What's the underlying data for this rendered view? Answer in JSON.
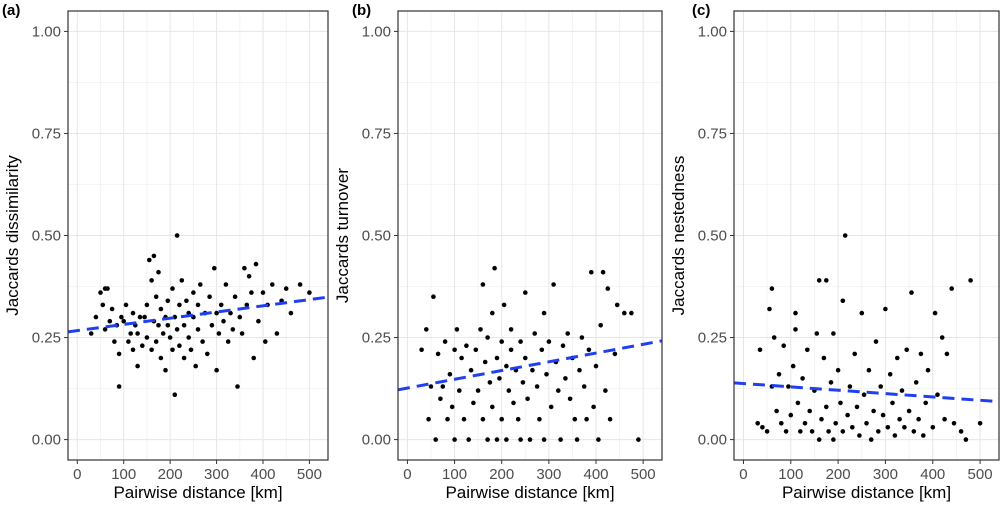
{
  "chart_data": [
    {
      "panel": "(a)",
      "type": "scatter",
      "xlabel": "Pairwise distance [km]",
      "ylabel": "Jaccards dissimilarity",
      "xlim": [
        -20,
        540
      ],
      "ylim": [
        -0.05,
        1.05
      ],
      "xticks": [
        "0",
        "100",
        "200",
        "300",
        "400",
        "500"
      ],
      "yticks": [
        "0.00",
        "0.25",
        "0.50",
        "0.75",
        "1.00"
      ],
      "trend": {
        "x": [
          -20,
          540
        ],
        "y": [
          0.264,
          0.349
        ]
      },
      "points": [
        [
          30,
          0.26
        ],
        [
          40,
          0.3
        ],
        [
          50,
          0.36
        ],
        [
          55,
          0.33
        ],
        [
          60,
          0.37
        ],
        [
          60,
          0.27
        ],
        [
          65,
          0.37
        ],
        [
          70,
          0.29
        ],
        [
          75,
          0.32
        ],
        [
          80,
          0.24
        ],
        [
          85,
          0.28
        ],
        [
          90,
          0.13
        ],
        [
          90,
          0.21
        ],
        [
          95,
          0.3
        ],
        [
          100,
          0.29
        ],
        [
          105,
          0.33
        ],
        [
          110,
          0.24
        ],
        [
          115,
          0.26
        ],
        [
          120,
          0.22
        ],
        [
          120,
          0.31
        ],
        [
          125,
          0.28
        ],
        [
          130,
          0.18
        ],
        [
          130,
          0.26
        ],
        [
          135,
          0.3
        ],
        [
          140,
          0.23
        ],
        [
          145,
          0.3
        ],
        [
          150,
          0.33
        ],
        [
          150,
          0.25
        ],
        [
          155,
          0.44
        ],
        [
          160,
          0.39
        ],
        [
          160,
          0.22
        ],
        [
          165,
          0.45
        ],
        [
          165,
          0.29
        ],
        [
          170,
          0.35
        ],
        [
          170,
          0.24
        ],
        [
          175,
          0.41
        ],
        [
          175,
          0.28
        ],
        [
          180,
          0.32
        ],
        [
          180,
          0.2
        ],
        [
          185,
          0.26
        ],
        [
          190,
          0.3
        ],
        [
          190,
          0.17
        ],
        [
          195,
          0.34
        ],
        [
          195,
          0.28
        ],
        [
          200,
          0.25
        ],
        [
          205,
          0.37
        ],
        [
          205,
          0.22
        ],
        [
          210,
          0.11
        ],
        [
          210,
          0.3
        ],
        [
          215,
          0.5
        ],
        [
          215,
          0.27
        ],
        [
          220,
          0.33
        ],
        [
          220,
          0.23
        ],
        [
          225,
          0.39
        ],
        [
          230,
          0.28
        ],
        [
          230,
          0.2
        ],
        [
          235,
          0.34
        ],
        [
          240,
          0.31
        ],
        [
          240,
          0.25
        ],
        [
          245,
          0.22
        ],
        [
          250,
          0.36
        ],
        [
          250,
          0.3
        ],
        [
          255,
          0.18
        ],
        [
          260,
          0.33
        ],
        [
          260,
          0.27
        ],
        [
          265,
          0.38
        ],
        [
          270,
          0.24
        ],
        [
          275,
          0.31
        ],
        [
          280,
          0.21
        ],
        [
          285,
          0.35
        ],
        [
          290,
          0.28
        ],
        [
          295,
          0.42
        ],
        [
          300,
          0.31
        ],
        [
          300,
          0.17
        ],
        [
          305,
          0.26
        ],
        [
          310,
          0.33
        ],
        [
          315,
          0.29
        ],
        [
          320,
          0.38
        ],
        [
          325,
          0.24
        ],
        [
          330,
          0.31
        ],
        [
          335,
          0.27
        ],
        [
          340,
          0.35
        ],
        [
          345,
          0.13
        ],
        [
          350,
          0.3
        ],
        [
          355,
          0.26
        ],
        [
          360,
          0.42
        ],
        [
          365,
          0.33
        ],
        [
          370,
          0.4
        ],
        [
          375,
          0.36
        ],
        [
          380,
          0.2
        ],
        [
          385,
          0.43
        ],
        [
          390,
          0.29
        ],
        [
          400,
          0.36
        ],
        [
          405,
          0.24
        ],
        [
          410,
          0.33
        ],
        [
          420,
          0.38
        ],
        [
          430,
          0.26
        ],
        [
          440,
          0.34
        ],
        [
          450,
          0.37
        ],
        [
          460,
          0.31
        ],
        [
          480,
          0.38
        ],
        [
          500,
          0.36
        ]
      ]
    },
    {
      "panel": "(b)",
      "type": "scatter",
      "xlabel": "Pairwise distance [km]",
      "ylabel": "Jaccards turnover",
      "xlim": [
        -20,
        540
      ],
      "ylim": [
        -0.05,
        1.05
      ],
      "xticks": [
        "0",
        "100",
        "200",
        "300",
        "400",
        "500"
      ],
      "yticks": [
        "0.00",
        "0.25",
        "0.50",
        "0.75",
        "1.00"
      ],
      "trend": {
        "x": [
          -20,
          540
        ],
        "y": [
          0.122,
          0.242
        ]
      },
      "points": [
        [
          30,
          0.22
        ],
        [
          40,
          0.27
        ],
        [
          45,
          0.05
        ],
        [
          50,
          0.13
        ],
        [
          55,
          0.35
        ],
        [
          60,
          0.0
        ],
        [
          65,
          0.21
        ],
        [
          70,
          0.1
        ],
        [
          75,
          0.13
        ],
        [
          80,
          0.24
        ],
        [
          85,
          0.05
        ],
        [
          90,
          0.16
        ],
        [
          95,
          0.08
        ],
        [
          100,
          0.22
        ],
        [
          100,
          0.0
        ],
        [
          105,
          0.27
        ],
        [
          110,
          0.12
        ],
        [
          115,
          0.2
        ],
        [
          120,
          0.05
        ],
        [
          125,
          0.23
        ],
        [
          130,
          0.0
        ],
        [
          135,
          0.17
        ],
        [
          140,
          0.09
        ],
        [
          145,
          0.22
        ],
        [
          150,
          0.12
        ],
        [
          155,
          0.27
        ],
        [
          160,
          0.05
        ],
        [
          160,
          0.38
        ],
        [
          165,
          0.19
        ],
        [
          170,
          0.0
        ],
        [
          170,
          0.25
        ],
        [
          175,
          0.14
        ],
        [
          180,
          0.31
        ],
        [
          180,
          0.08
        ],
        [
          185,
          0.42
        ],
        [
          190,
          0.0
        ],
        [
          190,
          0.2
        ],
        [
          195,
          0.15
        ],
        [
          200,
          0.24
        ],
        [
          200,
          0.05
        ],
        [
          205,
          0.33
        ],
        [
          210,
          0.18
        ],
        [
          210,
          0.0
        ],
        [
          215,
          0.12
        ],
        [
          220,
          0.22
        ],
        [
          220,
          0.27
        ],
        [
          225,
          0.09
        ],
        [
          230,
          0.17
        ],
        [
          235,
          0.05
        ],
        [
          240,
          0.24
        ],
        [
          240,
          0.0
        ],
        [
          245,
          0.14
        ],
        [
          250,
          0.36
        ],
        [
          250,
          0.2
        ],
        [
          255,
          0.1
        ],
        [
          260,
          0.0
        ],
        [
          265,
          0.17
        ],
        [
          270,
          0.26
        ],
        [
          275,
          0.13
        ],
        [
          280,
          0.05
        ],
        [
          285,
          0.22
        ],
        [
          290,
          0.31
        ],
        [
          290,
          0.0
        ],
        [
          295,
          0.16
        ],
        [
          300,
          0.24
        ],
        [
          305,
          0.08
        ],
        [
          310,
          0.38
        ],
        [
          315,
          0.19
        ],
        [
          320,
          0.12
        ],
        [
          325,
          0.0
        ],
        [
          330,
          0.23
        ],
        [
          335,
          0.15
        ],
        [
          340,
          0.26
        ],
        [
          345,
          0.1
        ],
        [
          350,
          0.2
        ],
        [
          355,
          0.05
        ],
        [
          360,
          0.0
        ],
        [
          365,
          0.17
        ],
        [
          370,
          0.25
        ],
        [
          375,
          0.13
        ],
        [
          380,
          0.05
        ],
        [
          385,
          0.22
        ],
        [
          390,
          0.41
        ],
        [
          395,
          0.08
        ],
        [
          400,
          0.18
        ],
        [
          405,
          0.0
        ],
        [
          410,
          0.28
        ],
        [
          415,
          0.41
        ],
        [
          420,
          0.12
        ],
        [
          425,
          0.37
        ],
        [
          430,
          0.05
        ],
        [
          440,
          0.21
        ],
        [
          445,
          0.33
        ],
        [
          460,
          0.31
        ],
        [
          475,
          0.31
        ],
        [
          490,
          0.0
        ]
      ]
    },
    {
      "panel": "(c)",
      "type": "scatter",
      "xlabel": "Pairwise distance [km]",
      "ylabel": "Jaccards nestedness",
      "xlim": [
        -20,
        540
      ],
      "ylim": [
        -0.05,
        1.05
      ],
      "xticks": [
        "0",
        "100",
        "200",
        "300",
        "400",
        "500"
      ],
      "yticks": [
        "0.00",
        "0.25",
        "0.50",
        "0.75",
        "1.00"
      ],
      "trend": {
        "x": [
          -20,
          540
        ],
        "y": [
          0.139,
          0.093
        ]
      },
      "points": [
        [
          30,
          0.04
        ],
        [
          35,
          0.22
        ],
        [
          40,
          0.03
        ],
        [
          50,
          0.02
        ],
        [
          55,
          0.32
        ],
        [
          60,
          0.37
        ],
        [
          60,
          0.13
        ],
        [
          65,
          0.25
        ],
        [
          70,
          0.07
        ],
        [
          75,
          0.16
        ],
        [
          80,
          0.04
        ],
        [
          85,
          0.23
        ],
        [
          90,
          0.02
        ],
        [
          95,
          0.13
        ],
        [
          100,
          0.06
        ],
        [
          105,
          0.18
        ],
        [
          110,
          0.27
        ],
        [
          110,
          0.31
        ],
        [
          115,
          0.09
        ],
        [
          120,
          0.02
        ],
        [
          125,
          0.15
        ],
        [
          130,
          0.04
        ],
        [
          135,
          0.22
        ],
        [
          140,
          0.07
        ],
        [
          145,
          0.02
        ],
        [
          150,
          0.12
        ],
        [
          155,
          0.26
        ],
        [
          160,
          0.39
        ],
        [
          160,
          0.0
        ],
        [
          165,
          0.05
        ],
        [
          170,
          0.2
        ],
        [
          175,
          0.39
        ],
        [
          175,
          0.08
        ],
        [
          180,
          0.02
        ],
        [
          185,
          0.14
        ],
        [
          190,
          0.0
        ],
        [
          190,
          0.26
        ],
        [
          195,
          0.04
        ],
        [
          200,
          0.17
        ],
        [
          205,
          0.09
        ],
        [
          210,
          0.02
        ],
        [
          210,
          0.34
        ],
        [
          215,
          0.5
        ],
        [
          220,
          0.06
        ],
        [
          225,
          0.13
        ],
        [
          230,
          0.03
        ],
        [
          235,
          0.21
        ],
        [
          240,
          0.08
        ],
        [
          245,
          0.01
        ],
        [
          250,
          0.31
        ],
        [
          255,
          0.11
        ],
        [
          260,
          0.04
        ],
        [
          265,
          0.17
        ],
        [
          270,
          0.0
        ],
        [
          275,
          0.07
        ],
        [
          280,
          0.24
        ],
        [
          285,
          0.02
        ],
        [
          290,
          0.13
        ],
        [
          295,
          0.06
        ],
        [
          300,
          0.32
        ],
        [
          305,
          0.03
        ],
        [
          310,
          0.16
        ],
        [
          315,
          0.09
        ],
        [
          320,
          0.01
        ],
        [
          325,
          0.2
        ],
        [
          330,
          0.05
        ],
        [
          335,
          0.12
        ],
        [
          340,
          0.03
        ],
        [
          345,
          0.22
        ],
        [
          350,
          0.07
        ],
        [
          355,
          0.36
        ],
        [
          360,
          0.02
        ],
        [
          365,
          0.14
        ],
        [
          370,
          0.05
        ],
        [
          375,
          0.21
        ],
        [
          380,
          0.01
        ],
        [
          385,
          0.09
        ],
        [
          390,
          0.17
        ],
        [
          400,
          0.03
        ],
        [
          405,
          0.31
        ],
        [
          410,
          0.11
        ],
        [
          420,
          0.25
        ],
        [
          425,
          0.05
        ],
        [
          430,
          0.21
        ],
        [
          440,
          0.37
        ],
        [
          445,
          0.04
        ],
        [
          460,
          0.02
        ],
        [
          470,
          0.0
        ],
        [
          480,
          0.39
        ],
        [
          500,
          0.04
        ]
      ]
    }
  ]
}
